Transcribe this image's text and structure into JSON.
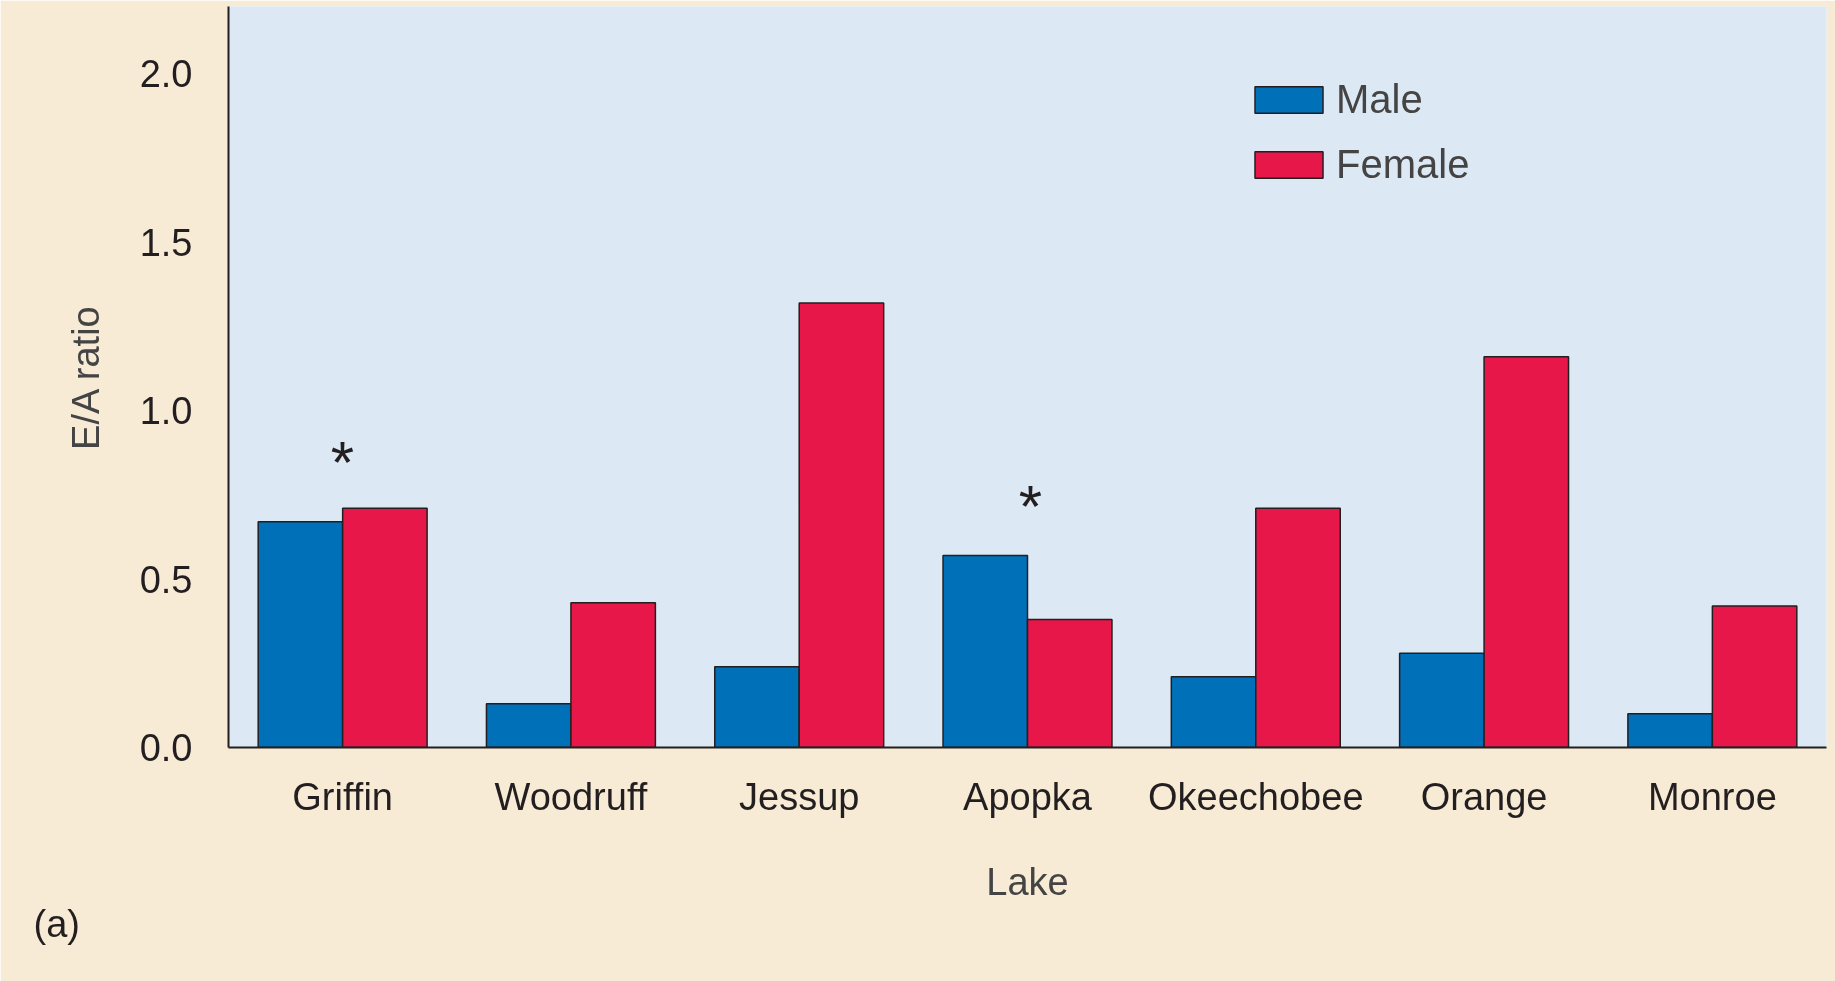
{
  "chart_data": {
    "type": "bar",
    "xlabel": "Lake",
    "ylabel": "E/A ratio",
    "categories": [
      "Griffin",
      "Woodruff",
      "Jessup",
      "Apopka",
      "Okeechobee",
      "Orange",
      "Monroe"
    ],
    "series": [
      {
        "name": "Male",
        "color": "#0070b8",
        "values": [
          0.67,
          0.13,
          0.24,
          0.57,
          0.21,
          0.28,
          0.1
        ]
      },
      {
        "name": "Female",
        "color": "#e8174a",
        "values": [
          0.71,
          0.43,
          1.32,
          0.38,
          0.71,
          1.16,
          0.42
        ]
      }
    ],
    "ylim": [
      0,
      2.2
    ],
    "yticks": [
      {
        "value": 0,
        "label": "0.0"
      },
      {
        "value": 0.5,
        "label": "0.5"
      },
      {
        "value": 1,
        "label": "1.0"
      },
      {
        "value": 1.5,
        "label": "1.5"
      },
      {
        "value": 2,
        "label": "2.0"
      }
    ],
    "annotations": [
      "*",
      "*",
      "(a)"
    ],
    "legend": "top right",
    "grid": false
  }
}
